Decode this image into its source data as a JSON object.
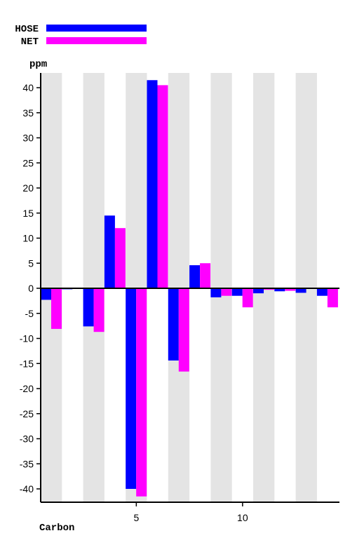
{
  "chart_data": {
    "type": "bar",
    "xlabel": "Carbon",
    "ylabel": "ppm",
    "ylim": [
      -42,
      42
    ],
    "y_ticks": [
      40,
      35,
      30,
      25,
      20,
      15,
      10,
      5,
      0,
      -5,
      -10,
      -15,
      -20,
      -25,
      -30,
      -35,
      -40
    ],
    "x_ticks": [
      5,
      10
    ],
    "categories": [
      1,
      2,
      3,
      4,
      5,
      6,
      7,
      8,
      9,
      10,
      11,
      12,
      13,
      14
    ],
    "grid": "alternating vertical bands",
    "legend_position": "top-left",
    "series": [
      {
        "name": "HOSE",
        "color": "#0000ff",
        "values": [
          -2.3,
          -0.2,
          -7.6,
          14.5,
          -40,
          41.5,
          -14.4,
          4.6,
          -1.8,
          -1.5,
          -1,
          -0.6,
          -0.9,
          -1.5
        ]
      },
      {
        "name": "NET",
        "color": "#ff00ff",
        "values": [
          -8.1,
          0,
          -8.7,
          12,
          -41.5,
          40.5,
          -16.6,
          5,
          -1.5,
          -3.8,
          -0.3,
          -0.5,
          0,
          -3.8
        ]
      }
    ]
  }
}
